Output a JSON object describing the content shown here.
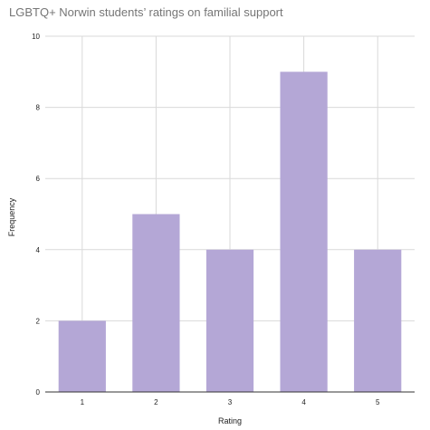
{
  "chart_data": {
    "type": "bar",
    "title": "LGBTQ+ Norwin students’ ratings on familial support",
    "xlabel": "Rating",
    "ylabel": "Frequency",
    "categories": [
      "1",
      "2",
      "3",
      "4",
      "5"
    ],
    "values": [
      2,
      5,
      4,
      9,
      4
    ],
    "ylim": [
      0,
      10
    ],
    "yticks": [
      0,
      2,
      4,
      6,
      8,
      10
    ],
    "grid": true,
    "bar_color": "#b4a7d6",
    "gridline_color": "#d9d9d9",
    "axis_color": "#333333"
  }
}
